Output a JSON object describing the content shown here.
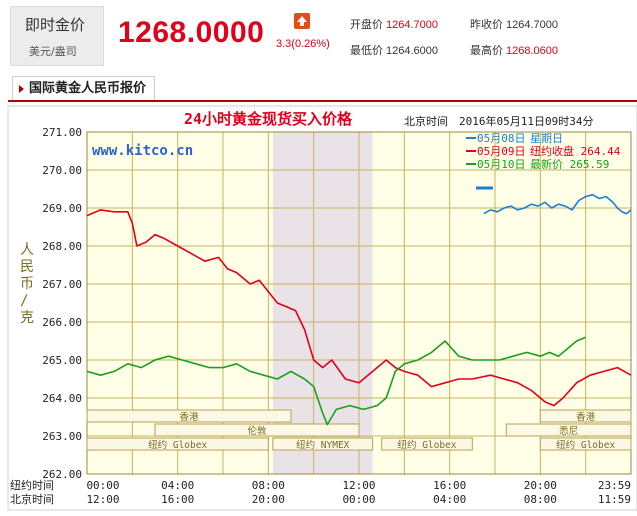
{
  "header": {
    "title": "即时金价",
    "subtitle": "美元/盎司",
    "price": "1268.0000",
    "change": "3.3(0.26%)",
    "trend_icon": "up-arrow-icon",
    "stats": [
      {
        "label": "开盘价",
        "value": "1264.7000"
      },
      {
        "label": "昨收价",
        "value": "1264.7000"
      },
      {
        "label": "最低价",
        "value": "1264.6000"
      },
      {
        "label": "最高价",
        "value": "1268.0600"
      }
    ],
    "colors": {
      "accent": "#e0001b",
      "label_box": "#ececec"
    }
  },
  "tab": {
    "label": "国际黄金人民币报价"
  },
  "chart_data": {
    "type": "line",
    "title": "24小时黄金现货买入价格",
    "timestamp_label": "北京时间　2016年05月11日09时34分",
    "watermark": "www.kitco.cn",
    "ylabel": "人民币/克",
    "ylim": [
      262.0,
      271.0
    ],
    "yticks": [
      "271.00",
      "270.00",
      "269.00",
      "268.00",
      "267.00",
      "266.00",
      "265.00",
      "264.00",
      "263.00",
      "262.00"
    ],
    "x_axis_rows": [
      {
        "label": "纽约时间",
        "ticks": [
          "00:00",
          "04:00",
          "08:00",
          "12:00",
          "16:00",
          "20:00",
          "23:59"
        ]
      },
      {
        "label": "北京时间",
        "ticks": [
          "12:00",
          "16:00",
          "20:00",
          "00:00",
          "04:00",
          "08:00",
          "11:59"
        ]
      }
    ],
    "legend": [
      {
        "date": "05月08日",
        "text": "星期日",
        "color": "#1a7fd6"
      },
      {
        "date": "05月09日",
        "text": "纽约收盘 264.44",
        "color": "#e0001b"
      },
      {
        "date": "05月10日",
        "text": "最新价 265.59",
        "color": "#1aa01a"
      }
    ],
    "sessions": [
      {
        "name": "香港",
        "row": 1,
        "start": 0.0,
        "end": 9.0
      },
      {
        "name": "香港",
        "row": 1,
        "start": 20.0,
        "end": 24.0
      },
      {
        "name": "伦敦",
        "row": 2,
        "start": 3.0,
        "end": 12.0
      },
      {
        "name": "悉尼",
        "row": 2,
        "start": 18.5,
        "end": 24.0
      },
      {
        "name": "纽约 Globex",
        "row": 3,
        "start": 0.0,
        "end": 8.0
      },
      {
        "name": "纽约 NYMEX",
        "row": 3,
        "start": 8.2,
        "end": 12.6
      },
      {
        "name": "纽约 Globex",
        "row": 3,
        "start": 13.0,
        "end": 17.0
      },
      {
        "name": "纽约 Globex",
        "row": 3,
        "start": 20.0,
        "end": 24.0
      }
    ],
    "nymex_shade_hours": [
      8.2,
      12.6
    ],
    "series": [
      {
        "name": "05月08日",
        "color": "#1a7fd6",
        "points": [
          [
            17.5,
            268.85
          ],
          [
            17.8,
            268.95
          ],
          [
            18.1,
            268.9
          ],
          [
            18.4,
            269.0
          ],
          [
            18.7,
            269.05
          ],
          [
            19.0,
            268.95
          ],
          [
            19.3,
            269.0
          ],
          [
            19.6,
            269.1
          ],
          [
            19.9,
            269.05
          ],
          [
            20.2,
            269.15
          ],
          [
            20.5,
            269.0
          ],
          [
            20.8,
            269.1
          ],
          [
            21.1,
            269.05
          ],
          [
            21.4,
            268.95
          ],
          [
            21.7,
            269.2
          ],
          [
            22.0,
            269.3
          ],
          [
            22.3,
            269.35
          ],
          [
            22.6,
            269.25
          ],
          [
            22.9,
            269.3
          ],
          [
            23.2,
            269.15
          ],
          [
            23.4,
            269.0
          ],
          [
            23.6,
            268.9
          ],
          [
            23.8,
            268.85
          ],
          [
            24.0,
            268.95
          ]
        ]
      },
      {
        "name": "05月09日",
        "color": "#e0001b",
        "points": [
          [
            0.0,
            268.8
          ],
          [
            0.6,
            268.95
          ],
          [
            1.2,
            268.9
          ],
          [
            1.8,
            268.9
          ],
          [
            2.0,
            268.6
          ],
          [
            2.2,
            268.0
          ],
          [
            2.6,
            268.1
          ],
          [
            3.0,
            268.3
          ],
          [
            3.4,
            268.2
          ],
          [
            4.0,
            268.0
          ],
          [
            4.6,
            267.8
          ],
          [
            5.2,
            267.6
          ],
          [
            5.8,
            267.7
          ],
          [
            6.2,
            267.4
          ],
          [
            6.6,
            267.3
          ],
          [
            7.2,
            267.0
          ],
          [
            7.6,
            267.1
          ],
          [
            8.0,
            266.8
          ],
          [
            8.4,
            266.5
          ],
          [
            8.8,
            266.4
          ],
          [
            9.2,
            266.3
          ],
          [
            9.6,
            265.8
          ],
          [
            10.0,
            265.0
          ],
          [
            10.4,
            264.8
          ],
          [
            10.8,
            265.0
          ],
          [
            11.4,
            264.5
          ],
          [
            12.0,
            264.4
          ],
          [
            12.6,
            264.7
          ],
          [
            13.2,
            265.0
          ],
          [
            13.6,
            264.8
          ],
          [
            14.0,
            264.7
          ],
          [
            14.6,
            264.6
          ],
          [
            15.2,
            264.3
          ],
          [
            15.8,
            264.4
          ],
          [
            16.4,
            264.5
          ],
          [
            17.0,
            264.5
          ],
          [
            17.8,
            264.6
          ],
          [
            18.4,
            264.5
          ],
          [
            19.0,
            264.4
          ],
          [
            19.6,
            264.2
          ],
          [
            20.2,
            263.9
          ],
          [
            20.6,
            263.8
          ],
          [
            21.0,
            264.0
          ],
          [
            21.6,
            264.4
          ],
          [
            22.2,
            264.6
          ],
          [
            22.8,
            264.7
          ],
          [
            23.4,
            264.8
          ],
          [
            24.0,
            264.6
          ]
        ]
      },
      {
        "name": "05月10日",
        "color": "#1aa01a",
        "points": [
          [
            0.0,
            264.7
          ],
          [
            0.6,
            264.6
          ],
          [
            1.2,
            264.7
          ],
          [
            1.8,
            264.9
          ],
          [
            2.4,
            264.8
          ],
          [
            3.0,
            265.0
          ],
          [
            3.6,
            265.1
          ],
          [
            4.2,
            265.0
          ],
          [
            4.8,
            264.9
          ],
          [
            5.4,
            264.8
          ],
          [
            6.0,
            264.8
          ],
          [
            6.6,
            264.9
          ],
          [
            7.2,
            264.7
          ],
          [
            7.8,
            264.6
          ],
          [
            8.4,
            264.5
          ],
          [
            9.0,
            264.7
          ],
          [
            9.6,
            264.5
          ],
          [
            10.0,
            264.3
          ],
          [
            10.4,
            263.6
          ],
          [
            10.6,
            263.3
          ],
          [
            11.0,
            263.7
          ],
          [
            11.6,
            263.8
          ],
          [
            12.2,
            263.7
          ],
          [
            12.8,
            263.8
          ],
          [
            13.2,
            264.0
          ],
          [
            13.6,
            264.7
          ],
          [
            14.0,
            264.9
          ],
          [
            14.6,
            265.0
          ],
          [
            15.2,
            265.2
          ],
          [
            15.8,
            265.5
          ],
          [
            16.4,
            265.1
          ],
          [
            17.0,
            265.0
          ],
          [
            17.6,
            265.0
          ],
          [
            18.2,
            265.0
          ],
          [
            18.8,
            265.1
          ],
          [
            19.4,
            265.2
          ],
          [
            20.0,
            265.1
          ],
          [
            20.4,
            265.2
          ],
          [
            20.8,
            265.1
          ],
          [
            21.2,
            265.3
          ],
          [
            21.6,
            265.5
          ],
          [
            22.0,
            265.6
          ]
        ]
      }
    ]
  }
}
